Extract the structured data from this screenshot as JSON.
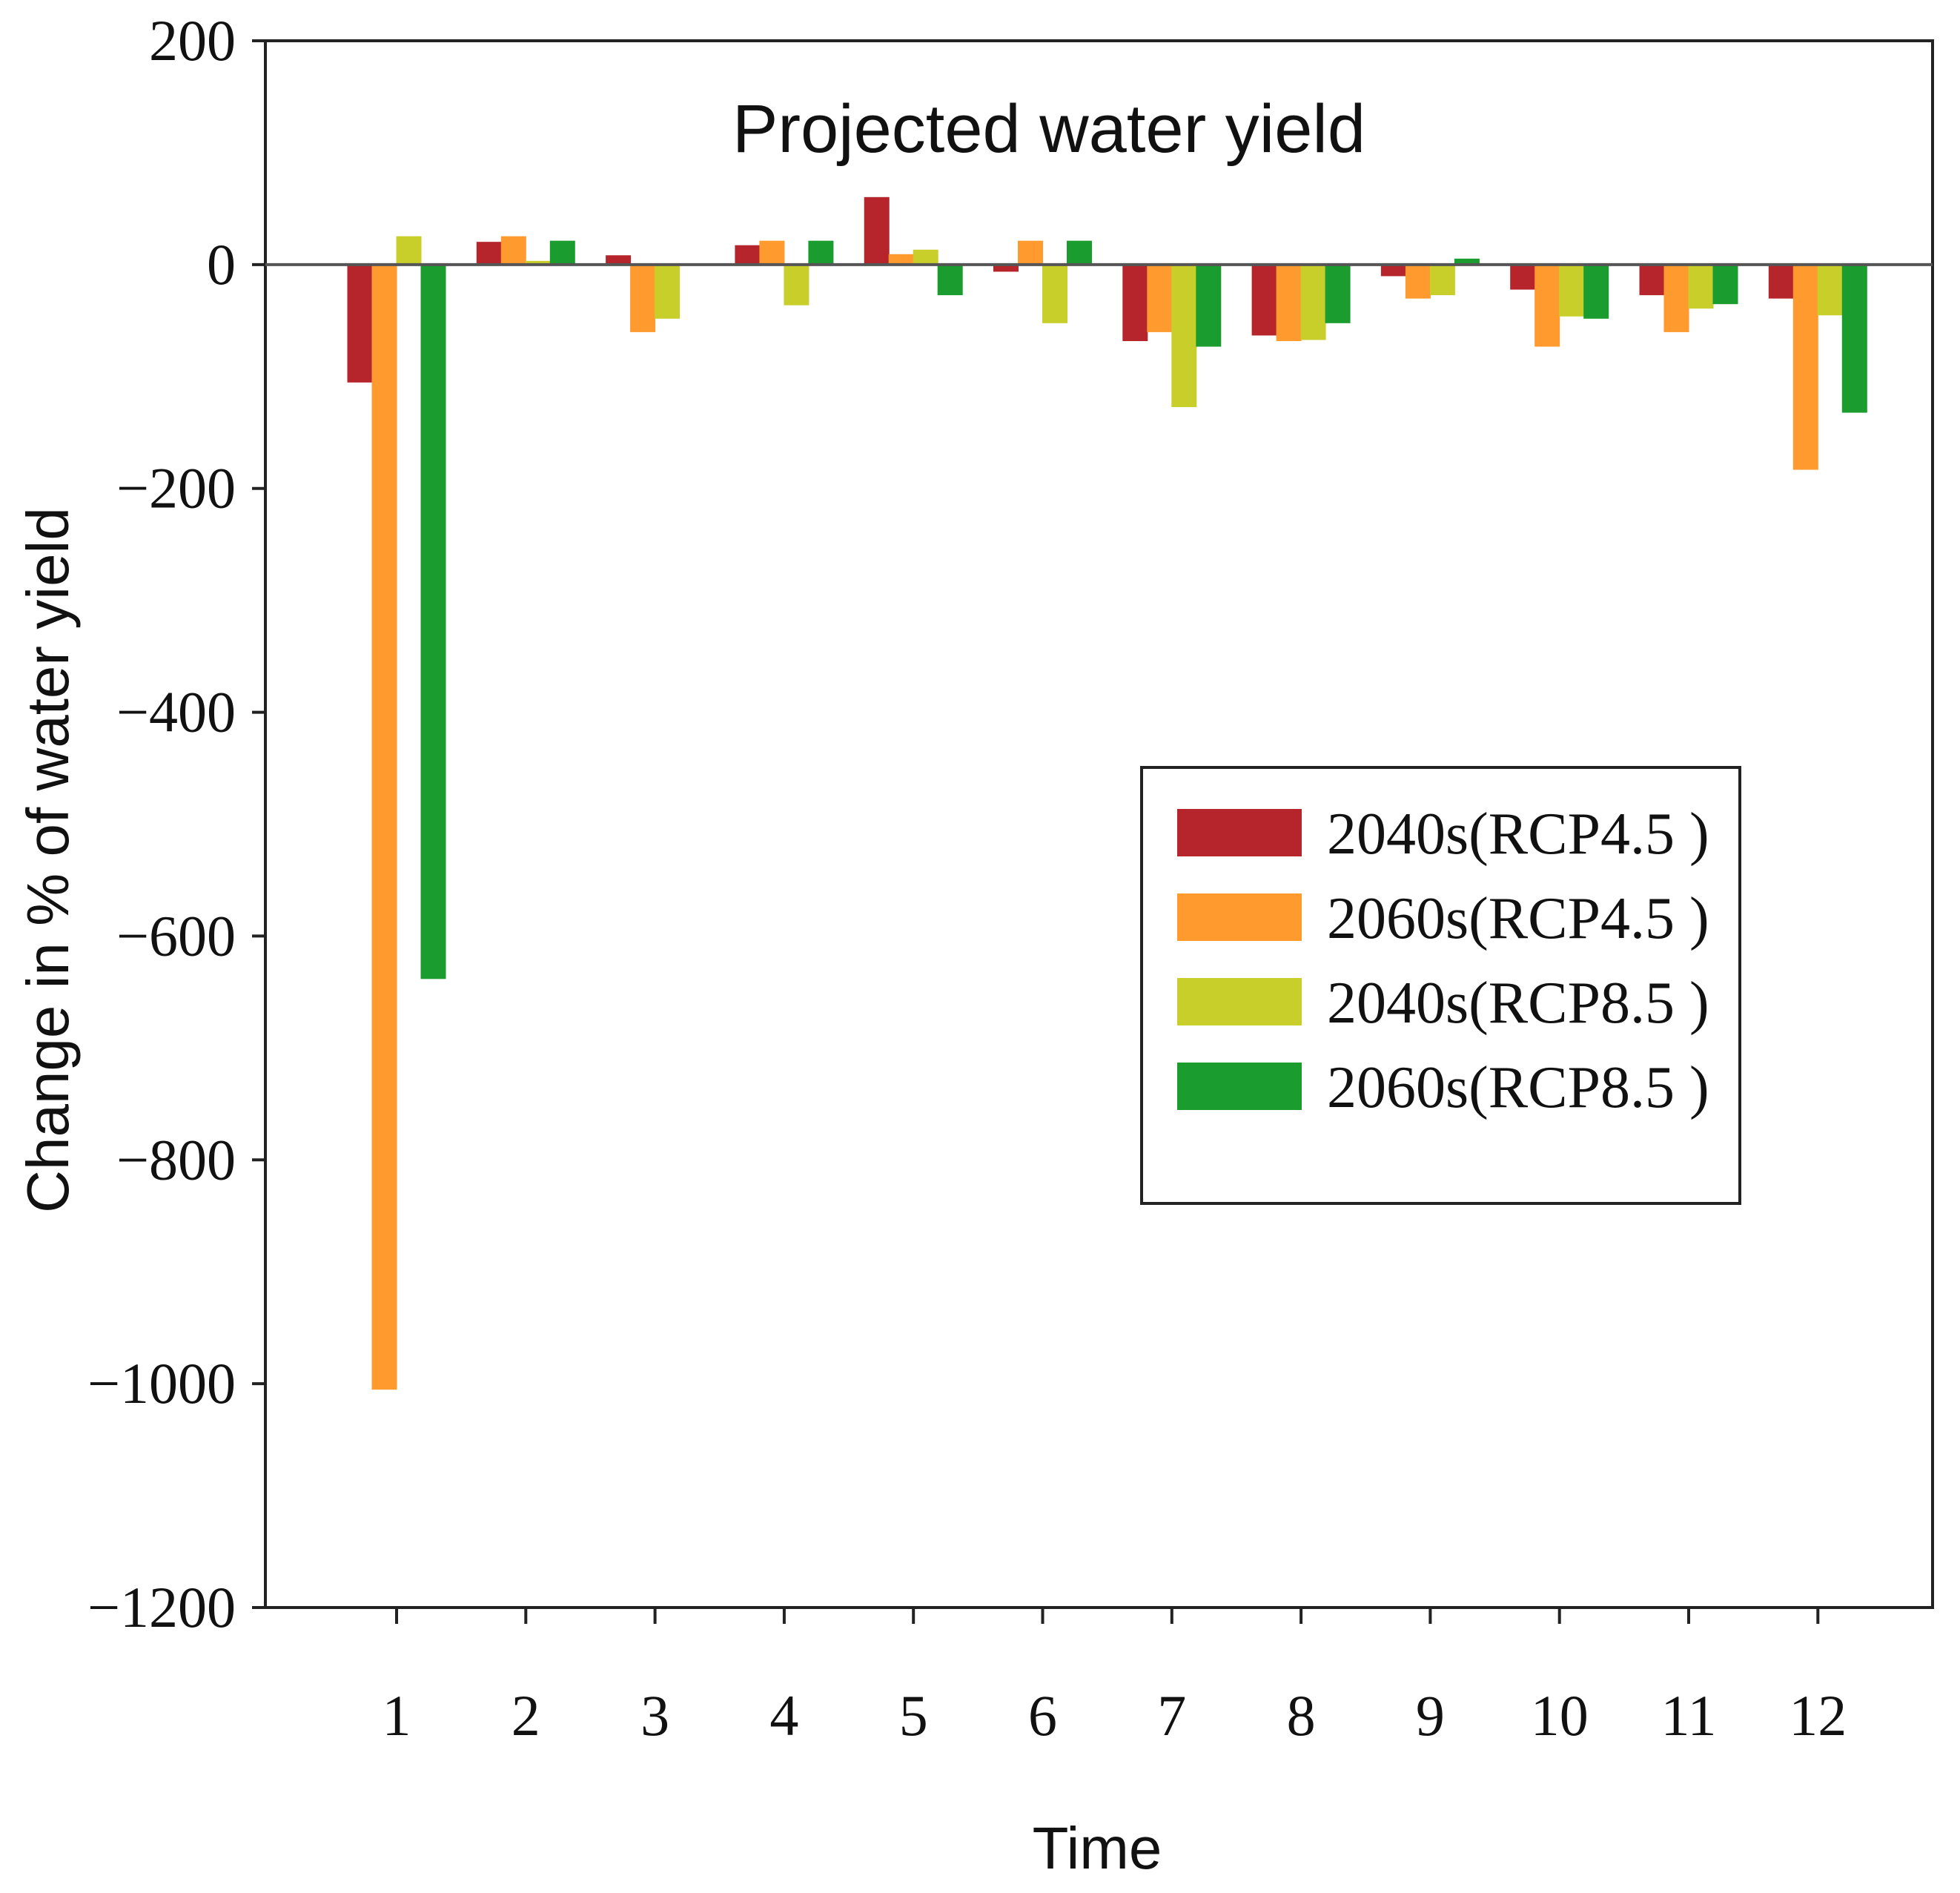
{
  "chart_data": {
    "type": "bar",
    "title": "Projected  water yield",
    "xlabel": "Time",
    "ylabel": "Change in % of water yield",
    "ylim": [
      -1200,
      200
    ],
    "yticks": [
      200,
      0,
      -200,
      -400,
      -600,
      -800,
      -1000,
      -1200
    ],
    "ytick_labels": [
      "200",
      "0",
      "−200",
      "−400",
      "−600",
      "−800",
      "−1000",
      "−1200"
    ],
    "categories": [
      "1",
      "2",
      "3",
      "4",
      "5",
      "6",
      "7",
      "8",
      "9",
      "10",
      "11",
      "12"
    ],
    "legend_position": "center-right",
    "series": [
      {
        "name": "2040s(RCP4.5 )",
        "color": "#b5252b",
        "values": [
          -105,
          20,
          8,
          17,
          60,
          -6,
          -68,
          -63,
          -10,
          -22,
          -27,
          -30
        ]
      },
      {
        "name": "2060s(RCP4.5 )",
        "color": "#ff9a2e",
        "values": [
          -1005,
          25,
          -60,
          21,
          9,
          21,
          -60,
          -68,
          -30,
          -73,
          -60,
          -183
        ]
      },
      {
        "name": "2040s(RCP8.5 )",
        "color": "#c9cf2a",
        "values": [
          25,
          3,
          -48,
          -36,
          13,
          -52,
          -127,
          -67,
          -27,
          -46,
          -39,
          -45
        ]
      },
      {
        "name": "2060s(RCP8.5 )",
        "color": "#1a9c2e",
        "values": [
          -638,
          21,
          0,
          21,
          -27,
          21,
          -73,
          -52,
          5,
          -48,
          -35,
          -132
        ]
      }
    ]
  }
}
